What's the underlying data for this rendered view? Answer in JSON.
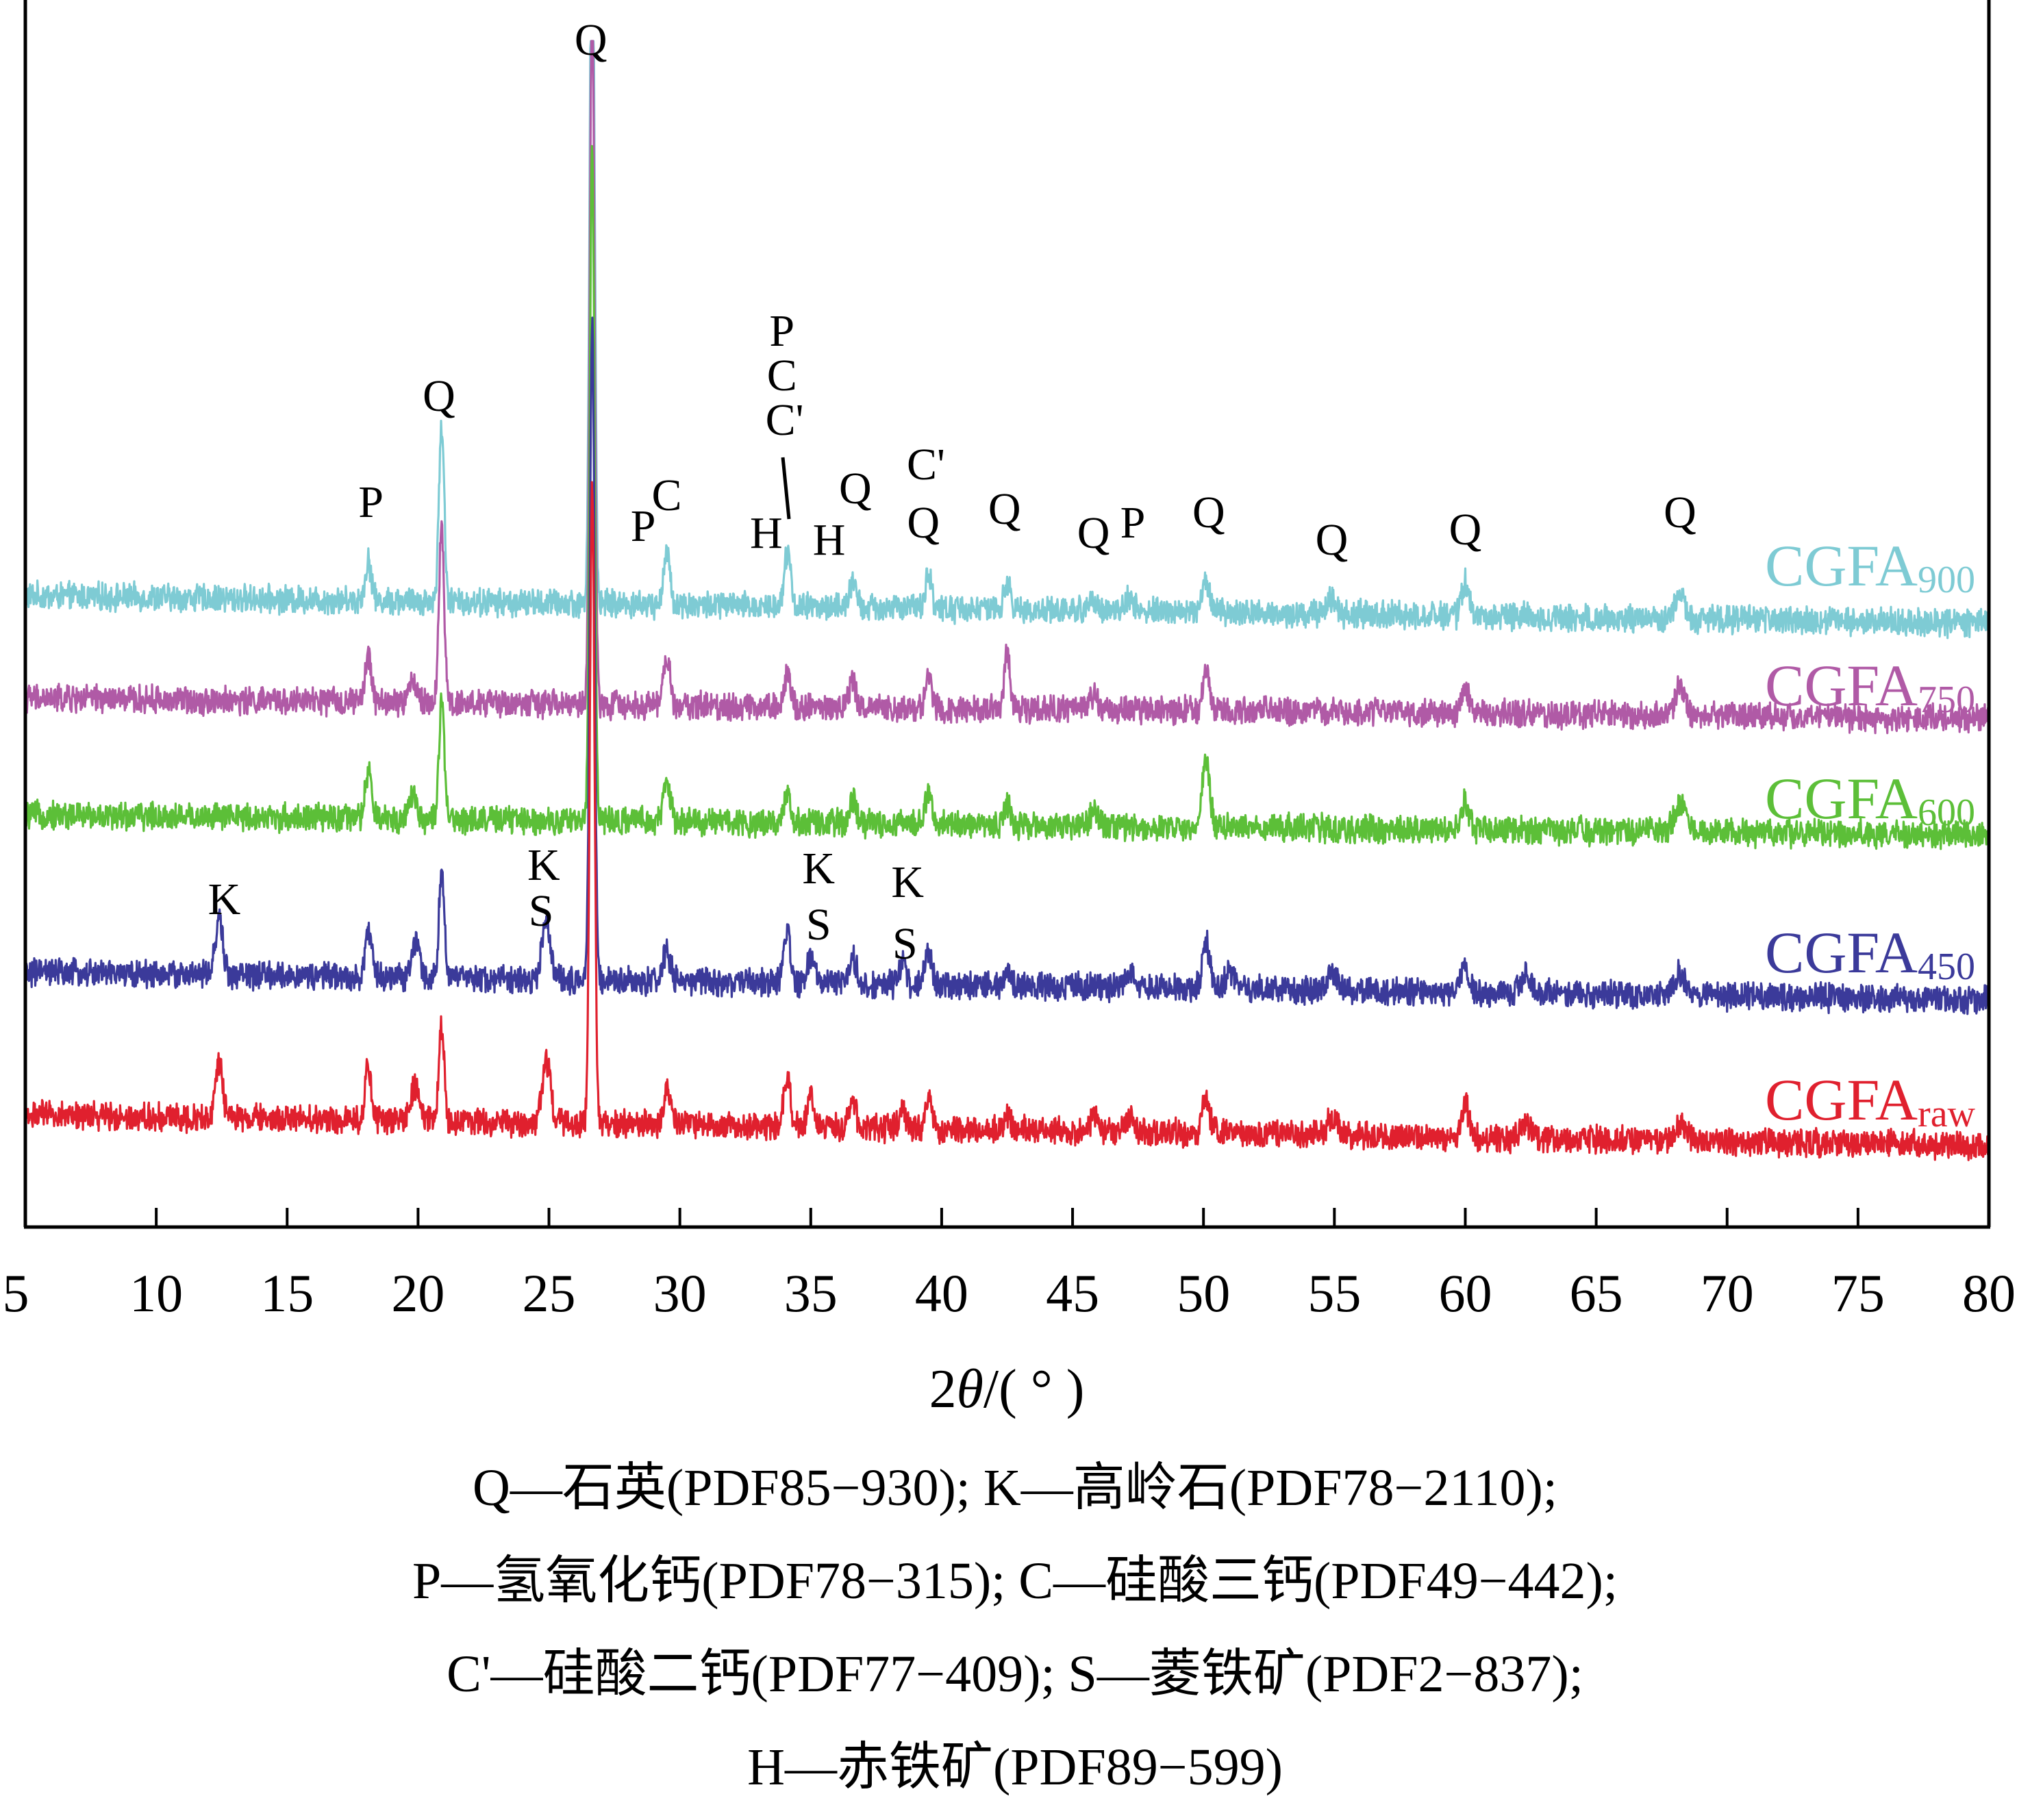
{
  "chart_data": {
    "type": "line",
    "title": "",
    "xlabel_prefix": "2",
    "xlabel_var": "θ",
    "xlabel_suffix": "/( ° )",
    "ylabel": "",
    "xlim": [
      5,
      80
    ],
    "xticks": [
      5,
      10,
      15,
      20,
      25,
      30,
      35,
      40,
      45,
      50,
      55,
      60,
      65,
      70,
      75,
      80
    ],
    "grid": false,
    "y_axis_ticks": false,
    "series": [
      {
        "name": "CGFA",
        "subscript": "900",
        "color": "#7ecbd4",
        "baseline": 0.72,
        "trend": 0.13,
        "noise": 0.85,
        "peaks": [
          [
            18.1,
            2.2,
            0.12
          ],
          [
            20.9,
            10.0,
            0.1
          ],
          [
            26.65,
            42.0,
            0.09
          ],
          [
            29.5,
            2.8,
            0.13
          ],
          [
            34.1,
            3.0,
            0.13
          ],
          [
            36.6,
            1.3,
            0.13
          ],
          [
            39.5,
            2.0,
            0.12
          ],
          [
            42.5,
            1.4,
            0.12
          ],
          [
            45.8,
            0.8,
            0.15
          ],
          [
            47.2,
            0.8,
            0.15
          ],
          [
            50.1,
            1.8,
            0.14
          ],
          [
            54.9,
            0.8,
            0.2
          ],
          [
            60.0,
            1.8,
            0.14
          ],
          [
            68.2,
            1.3,
            0.2
          ]
        ]
      },
      {
        "name": "CGFA",
        "subscript": "750",
        "color": "#b05aa6",
        "baseline": 0.72,
        "trend": 0.13,
        "noise": 0.85,
        "peaks": [
          [
            18.1,
            2.5,
            0.12
          ],
          [
            19.8,
            1.2,
            0.15
          ],
          [
            20.9,
            9.8,
            0.1
          ],
          [
            26.65,
            40.0,
            0.09
          ],
          [
            29.5,
            2.6,
            0.13
          ],
          [
            34.1,
            1.8,
            0.13
          ],
          [
            36.6,
            1.4,
            0.13
          ],
          [
            39.5,
            1.8,
            0.12
          ],
          [
            42.5,
            3.2,
            0.1
          ],
          [
            45.8,
            0.9,
            0.15
          ],
          [
            50.1,
            2.2,
            0.14
          ],
          [
            60.0,
            1.4,
            0.14
          ],
          [
            68.2,
            1.6,
            0.2
          ]
        ]
      },
      {
        "name": "CGFA",
        "subscript": "600",
        "color": "#5cbf38",
        "baseline": 0.72,
        "trend": 0.13,
        "noise": 0.85,
        "peaks": [
          [
            18.1,
            2.6,
            0.12
          ],
          [
            19.8,
            1.4,
            0.15
          ],
          [
            20.9,
            6.5,
            0.1
          ],
          [
            26.65,
            38.0,
            0.09
          ],
          [
            29.5,
            2.2,
            0.13
          ],
          [
            34.1,
            1.5,
            0.13
          ],
          [
            36.6,
            1.4,
            0.13
          ],
          [
            39.5,
            2.0,
            0.12
          ],
          [
            42.5,
            1.1,
            0.12
          ],
          [
            45.8,
            0.8,
            0.15
          ],
          [
            50.1,
            3.8,
            0.14
          ],
          [
            60.0,
            1.5,
            0.14
          ],
          [
            68.2,
            1.6,
            0.2
          ]
        ]
      },
      {
        "name": "CGFA",
        "subscript": "450",
        "color": "#3b3a9a",
        "baseline": 0.72,
        "trend": 0.13,
        "noise": 0.85,
        "peaks": [
          [
            12.4,
            3.2,
            0.14
          ],
          [
            18.1,
            2.6,
            0.12
          ],
          [
            19.9,
            2.0,
            0.15
          ],
          [
            20.9,
            6.2,
            0.1
          ],
          [
            24.9,
            3.3,
            0.16
          ],
          [
            26.65,
            37.0,
            0.09
          ],
          [
            29.5,
            1.8,
            0.13
          ],
          [
            34.1,
            2.8,
            0.13
          ],
          [
            35.0,
            1.5,
            0.14
          ],
          [
            36.6,
            1.6,
            0.13
          ],
          [
            38.5,
            1.1,
            0.13
          ],
          [
            39.5,
            2.0,
            0.12
          ],
          [
            42.5,
            0.9,
            0.12
          ],
          [
            47.2,
            0.8,
            0.15
          ],
          [
            50.1,
            2.6,
            0.14
          ],
          [
            51.0,
            1.2,
            0.14
          ],
          [
            54.9,
            0.9,
            0.2
          ],
          [
            60.0,
            1.4,
            0.14
          ],
          [
            62.3,
            0.9,
            0.2
          ],
          [
            68.2,
            1.2,
            0.2
          ]
        ]
      },
      {
        "name": "CGFA",
        "subscript": "raw",
        "color": "#e0202e",
        "baseline": 0.72,
        "trend": 0.13,
        "noise": 0.85,
        "peaks": [
          [
            12.4,
            3.0,
            0.14
          ],
          [
            18.1,
            3.0,
            0.12
          ],
          [
            19.9,
            2.0,
            0.15
          ],
          [
            20.9,
            5.4,
            0.1
          ],
          [
            24.9,
            3.4,
            0.16
          ],
          [
            26.65,
            36.0,
            0.09
          ],
          [
            29.5,
            2.0,
            0.13
          ],
          [
            34.1,
            2.6,
            0.13
          ],
          [
            35.0,
            1.5,
            0.14
          ],
          [
            36.6,
            1.6,
            0.13
          ],
          [
            38.5,
            1.2,
            0.13
          ],
          [
            39.5,
            1.6,
            0.12
          ],
          [
            42.5,
            0.9,
            0.12
          ],
          [
            45.8,
            0.8,
            0.15
          ],
          [
            47.2,
            0.9,
            0.15
          ],
          [
            50.1,
            1.9,
            0.14
          ],
          [
            54.9,
            0.9,
            0.2
          ],
          [
            60.0,
            1.8,
            0.14
          ],
          [
            62.3,
            0.8,
            0.2
          ],
          [
            68.2,
            0.9,
            0.2
          ]
        ]
      }
    ],
    "annotations": [
      {
        "text": "Q",
        "x": 26.6,
        "series": 0
      },
      {
        "text": "Q",
        "x": 20.8,
        "series": 0
      },
      {
        "text": "P",
        "x": 18.2,
        "series": 0
      },
      {
        "text": "P",
        "x": 28.6,
        "series": 0
      },
      {
        "text": "C",
        "x": 29.5,
        "series": 0
      },
      {
        "text": "H",
        "x": 33.3,
        "series": 0
      },
      {
        "text": "P",
        "x": 33.9,
        "series": 0
      },
      {
        "text": "C",
        "x": 33.9,
        "series": 0
      },
      {
        "text": "C'",
        "x": 34.0,
        "series": 0
      },
      {
        "text": "H",
        "x": 35.7,
        "series": 0
      },
      {
        "text": "Q",
        "x": 36.7,
        "series": 0
      },
      {
        "text": "C'",
        "x": 39.4,
        "series": 0
      },
      {
        "text": "Q",
        "x": 39.3,
        "series": 0
      },
      {
        "text": "Q",
        "x": 42.4,
        "series": 0
      },
      {
        "text": "Q",
        "x": 45.8,
        "series": 0
      },
      {
        "text": "P",
        "x": 47.3,
        "series": 0
      },
      {
        "text": "Q",
        "x": 50.2,
        "series": 0
      },
      {
        "text": "Q",
        "x": 54.9,
        "series": 0
      },
      {
        "text": "Q",
        "x": 60.0,
        "series": 0
      },
      {
        "text": "Q",
        "x": 68.2,
        "series": 0
      },
      {
        "text": "K",
        "x": 12.6,
        "series": 3
      },
      {
        "text": "K",
        "x": 24.8,
        "series": 3
      },
      {
        "text": "S",
        "x": 24.7,
        "series": 3
      },
      {
        "text": "K",
        "x": 35.3,
        "series": 3
      },
      {
        "text": "S",
        "x": 35.3,
        "series": 3
      },
      {
        "text": "K",
        "x": 38.7,
        "series": 3
      },
      {
        "text": "S",
        "x": 38.6,
        "series": 3
      }
    ]
  },
  "legend_lines": [
    "Q—石英(PDF85−930); K—高岭石(PDF78−2110);",
    "P—氢氧化钙(PDF78−315); C—硅酸三钙(PDF49−442);",
    "C'—硅酸二钙(PDF77−409); S—菱铁矿(PDF2−837);",
    "H—赤铁矿(PDF89−599)"
  ]
}
